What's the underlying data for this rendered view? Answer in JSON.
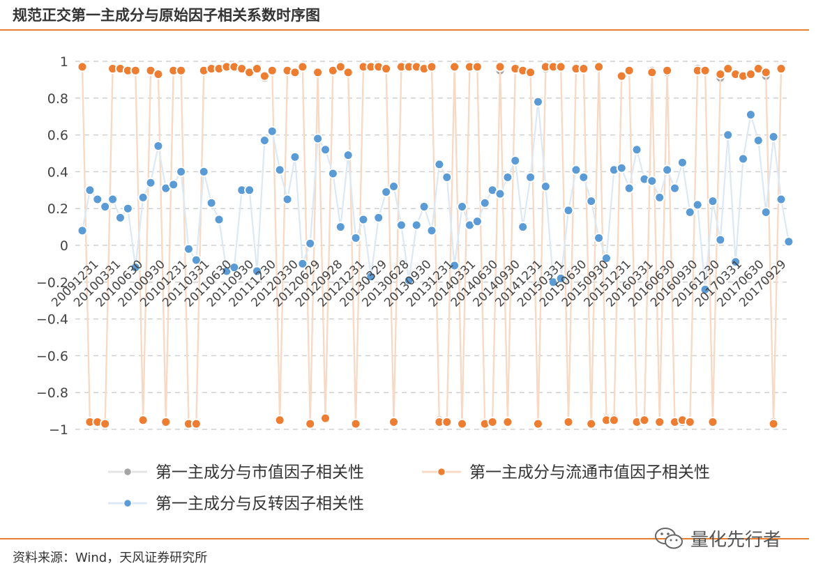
{
  "title": "规范正交第一主成分与原始因子相关系数时序图",
  "source": "资料来源：Wind，天风证券研究所",
  "brand": "量化先行者",
  "colors": {
    "accent": "#e87e2e",
    "series_market_cap": "#a5a5a5",
    "series_float_cap": "#ed7d31",
    "series_reversal": "#5b9bd5"
  },
  "chart_data": {
    "type": "line",
    "ylim": [
      -1,
      1
    ],
    "yticks": [
      "1",
      "0.8",
      "0.6",
      "0.4",
      "0.2",
      "0",
      "−0.2",
      "−0.4",
      "−0.6",
      "−0.8",
      "−1"
    ],
    "grid": true,
    "legend_position": "bottom",
    "x_tick_labels": [
      "20091231",
      "20100331",
      "20100630",
      "20100930",
      "20101231",
      "20110331",
      "20110630",
      "20110930",
      "20111230",
      "20120330",
      "20120629",
      "20120928",
      "20121231",
      "20130329",
      "20130628",
      "20130930",
      "20131231",
      "20140331",
      "20140630",
      "20140930",
      "20141231",
      "20150331",
      "20150630",
      "20150930",
      "20151231",
      "20160331",
      "20160630",
      "20160930",
      "20161230",
      "20170331",
      "20170630",
      "20170929"
    ],
    "series": [
      {
        "name": "第一主成分与市值因子相关性",
        "values": [
          0.97,
          -0.96,
          -0.96,
          -0.97,
          0.96,
          0.96,
          0.95,
          0.95,
          -0.95,
          0.95,
          0.93,
          -0.96,
          0.95,
          0.95,
          -0.97,
          -0.97,
          0.95,
          0.96,
          0.96,
          0.97,
          0.97,
          0.96,
          0.94,
          0.96,
          0.91,
          0.95,
          -0.95,
          0.95,
          0.94,
          0.97,
          -0.97,
          0.94,
          -0.94,
          0.95,
          0.97,
          0.94,
          -0.97,
          0.97,
          0.97,
          0.97,
          0.96,
          -0.96,
          0.97,
          0.97,
          0.97,
          0.96,
          0.97,
          -0.95,
          -0.96,
          0.97,
          -0.97,
          0.97,
          0.97,
          -0.97,
          -0.96,
          0.95,
          -0.96,
          0.96,
          0.95,
          0.94,
          -0.97,
          0.96,
          0.97,
          0.97,
          -0.96,
          0.96,
          0.96,
          -0.97,
          0.97,
          -0.94,
          -0.94,
          0.92,
          0.95,
          -0.96,
          -0.95,
          0.95,
          -0.96,
          0.94,
          -0.96,
          -0.96,
          -0.96,
          0.96,
          0.95,
          -0.96,
          0.91,
          0.96,
          0.93,
          0.92,
          0.93,
          0.96,
          0.92,
          -0.96,
          0.96
        ]
      },
      {
        "name": "第一主成分与流通市值因子相关性",
        "values": [
          0.97,
          -0.96,
          -0.96,
          -0.97,
          0.96,
          0.96,
          0.95,
          0.95,
          -0.95,
          0.95,
          0.93,
          -0.96,
          0.95,
          0.95,
          -0.97,
          -0.97,
          0.95,
          0.96,
          0.96,
          0.97,
          0.97,
          0.96,
          0.94,
          0.96,
          0.92,
          0.95,
          -0.95,
          0.95,
          0.94,
          0.97,
          -0.97,
          0.94,
          -0.94,
          0.95,
          0.97,
          0.94,
          -0.97,
          0.97,
          0.97,
          0.97,
          0.96,
          -0.96,
          0.97,
          0.97,
          0.97,
          0.96,
          0.97,
          -0.96,
          -0.96,
          0.97,
          -0.97,
          0.97,
          0.97,
          -0.97,
          -0.96,
          0.97,
          -0.96,
          0.96,
          0.95,
          0.94,
          -0.97,
          0.97,
          0.97,
          0.97,
          -0.96,
          0.96,
          0.96,
          -0.97,
          0.97,
          -0.95,
          -0.95,
          0.92,
          0.95,
          -0.96,
          -0.95,
          0.94,
          -0.96,
          0.95,
          -0.96,
          -0.95,
          -0.96,
          0.95,
          0.95,
          -0.96,
          0.93,
          0.96,
          0.93,
          0.92,
          0.93,
          0.96,
          0.94,
          -0.97,
          0.96
        ]
      },
      {
        "name": "第一主成分与反转因子相关性",
        "values": [
          0.08,
          0.3,
          0.25,
          0.21,
          0.25,
          0.15,
          0.2,
          -0.12,
          0.26,
          0.34,
          0.54,
          0.31,
          0.33,
          0.4,
          -0.02,
          -0.08,
          0.4,
          0.23,
          0.14,
          -0.14,
          -0.12,
          0.3,
          0.3,
          -0.14,
          0.57,
          0.62,
          0.41,
          0.25,
          0.48,
          -0.1,
          0.01,
          0.58,
          0.52,
          0.39,
          0.1,
          0.49,
          0.04,
          0.14,
          -0.17,
          0.15,
          0.29,
          0.32,
          0.11,
          -0.19,
          0.11,
          0.21,
          0.08,
          0.44,
          0.37,
          -0.11,
          0.21,
          0.11,
          0.13,
          0.23,
          0.3,
          0.28,
          0.37,
          0.46,
          0.1,
          0.37,
          0.78,
          0.32,
          -0.2,
          -0.18,
          0.19,
          0.41,
          0.37,
          0.24,
          0.04,
          -0.07,
          0.41,
          0.42,
          0.31,
          0.52,
          0.36,
          0.35,
          0.26,
          0.41,
          0.31,
          0.45,
          0.18,
          0.22,
          -0.24,
          0.24,
          0.03,
          0.6,
          -0.09,
          0.47,
          0.71,
          0.57,
          0.18,
          0.59,
          0.25,
          0.02
        ]
      }
    ]
  }
}
